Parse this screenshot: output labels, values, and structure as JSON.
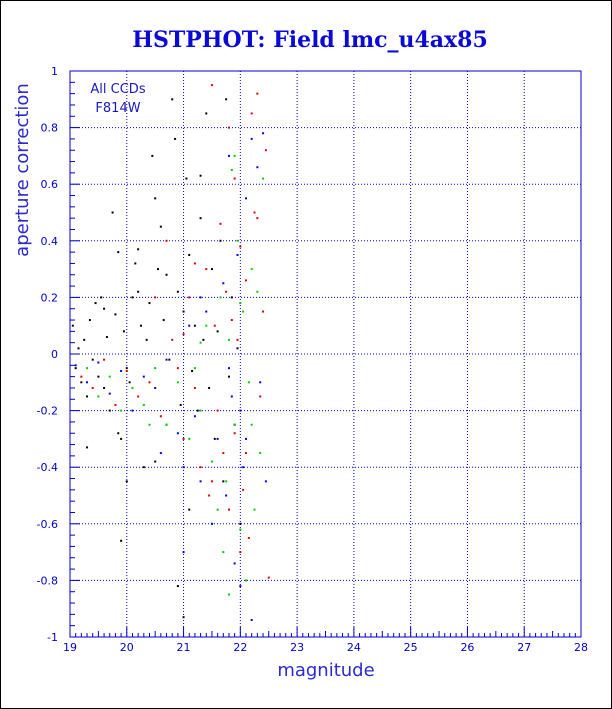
{
  "chart_data": {
    "type": "scatter",
    "title": "HSTPHOT: Field lmc_u4ax85",
    "xlabel": "magnitude",
    "ylabel": "aperture correction",
    "xlim": [
      19,
      28
    ],
    "ylim": [
      -1,
      1
    ],
    "xticks": [
      "19",
      "20",
      "21",
      "22",
      "23",
      "24",
      "25",
      "26",
      "27",
      "28"
    ],
    "yticks": [
      "1",
      "0.8",
      "0.6",
      "0.4",
      "0.2",
      "0",
      "-0.2",
      "-0.4",
      "-0.6",
      "-0.8",
      "-1"
    ],
    "grid": true,
    "annotations": [
      "All CCDs",
      "F814W"
    ],
    "colors": {
      "frame": "#0000cc",
      "grid": "#0000cc",
      "title": "#0a0ad8",
      "series": [
        "#000000",
        "#e00000",
        "#00d000",
        "#0000ee"
      ]
    },
    "series": [
      {
        "color": "#000000",
        "points": [
          [
            19.05,
            0.1
          ],
          [
            19.1,
            -0.05
          ],
          [
            19.15,
            0.02
          ],
          [
            19.2,
            -0.1
          ],
          [
            19.25,
            0.05
          ],
          [
            19.3,
            -0.15
          ],
          [
            19.35,
            0.12
          ],
          [
            19.4,
            -0.02
          ],
          [
            19.45,
            0.18
          ],
          [
            19.5,
            -0.08
          ],
          [
            19.55,
            0.2
          ],
          [
            19.6,
            -0.12
          ],
          [
            19.65,
            0.06
          ],
          [
            19.7,
            -0.2
          ],
          [
            19.75,
            0.5
          ],
          [
            19.8,
            0.14
          ],
          [
            19.85,
            -0.28
          ],
          [
            19.9,
            -0.3
          ],
          [
            19.95,
            0.08
          ],
          [
            20.0,
            -0.05
          ],
          [
            20.05,
            -0.1
          ],
          [
            20.1,
            0.2
          ],
          [
            20.15,
            0.32
          ],
          [
            20.2,
            0.22
          ],
          [
            20.25,
            0.1
          ],
          [
            20.3,
            -0.4
          ],
          [
            20.35,
            0.05
          ],
          [
            20.4,
            0.18
          ],
          [
            20.45,
            0.7
          ],
          [
            20.5,
            0.55
          ],
          [
            20.55,
            0.3
          ],
          [
            20.6,
            0.45
          ],
          [
            20.65,
            0.12
          ],
          [
            20.7,
            0.28
          ],
          [
            20.75,
            -0.02
          ],
          [
            20.8,
            0.9
          ],
          [
            20.85,
            0.76
          ],
          [
            20.9,
            0.22
          ],
          [
            20.95,
            -0.18
          ],
          [
            21.0,
            0.15
          ],
          [
            21.05,
            0.62
          ],
          [
            21.1,
            0.35
          ],
          [
            21.15,
            -0.06
          ],
          [
            21.2,
            0.1
          ],
          [
            21.25,
            -0.2
          ],
          [
            21.3,
            0.48
          ],
          [
            21.35,
            0.05
          ],
          [
            21.4,
            0.85
          ],
          [
            21.45,
            -0.12
          ],
          [
            21.5,
            0.3
          ],
          [
            21.55,
            -0.3
          ],
          [
            21.6,
            0.08
          ],
          [
            21.65,
            0.4
          ],
          [
            21.7,
            -0.45
          ],
          [
            21.75,
            0.9
          ],
          [
            21.8,
            -0.08
          ],
          [
            21.85,
            0.2
          ],
          [
            21.9,
            -0.25
          ],
          [
            21.95,
            0.02
          ],
          [
            22.0,
            -0.6
          ],
          [
            20.9,
            -0.82
          ],
          [
            21.0,
            -0.93
          ],
          [
            19.9,
            -0.66
          ],
          [
            20.2,
            0.37
          ],
          [
            19.3,
            -0.33
          ],
          [
            19.6,
            0.16
          ],
          [
            20.5,
            -0.38
          ],
          [
            20.7,
            -0.25
          ],
          [
            21.1,
            -0.55
          ],
          [
            19.85,
            0.36
          ],
          [
            20.0,
            -0.45
          ],
          [
            21.3,
            0.63
          ]
        ]
      },
      {
        "color": "#e00000",
        "points": [
          [
            19.2,
            -0.08
          ],
          [
            19.4,
            -0.12
          ],
          [
            19.6,
            -0.02
          ],
          [
            19.8,
            -0.18
          ],
          [
            20.0,
            -0.06
          ],
          [
            20.2,
            -0.15
          ],
          [
            20.4,
            -0.1
          ],
          [
            20.6,
            -0.22
          ],
          [
            20.8,
            0.05
          ],
          [
            21.0,
            -0.3
          ],
          [
            21.1,
            0.2
          ],
          [
            21.2,
            -0.12
          ],
          [
            21.3,
            -0.4
          ],
          [
            21.4,
            0.3
          ],
          [
            21.45,
            -0.5
          ],
          [
            21.5,
            0.95
          ],
          [
            21.55,
            0.1
          ],
          [
            21.6,
            -0.2
          ],
          [
            21.65,
            0.46
          ],
          [
            21.7,
            -0.35
          ],
          [
            21.75,
            0.22
          ],
          [
            21.8,
            -0.55
          ],
          [
            21.85,
            0.12
          ],
          [
            21.9,
            -0.28
          ],
          [
            21.95,
            0.05
          ],
          [
            22.0,
            0.38
          ],
          [
            22.05,
            -0.48
          ],
          [
            22.1,
            0.26
          ],
          [
            22.15,
            -0.65
          ],
          [
            22.2,
            0.85
          ],
          [
            22.25,
            0.5
          ],
          [
            22.3,
            0.92
          ],
          [
            22.35,
            -0.15
          ],
          [
            22.4,
            0.15
          ],
          [
            22.45,
            0.72
          ],
          [
            22.5,
            -0.79
          ],
          [
            22.0,
            -0.7
          ],
          [
            21.8,
            0.8
          ],
          [
            21.5,
            -0.45
          ],
          [
            21.2,
            0.32
          ],
          [
            20.9,
            -0.05
          ],
          [
            20.7,
            0.4
          ],
          [
            21.9,
            0.62
          ],
          [
            22.3,
            0.48
          ],
          [
            22.1,
            -0.35
          ],
          [
            20.5,
            0.2
          ],
          [
            21.0,
            0.07
          ]
        ]
      },
      {
        "color": "#00d000",
        "points": [
          [
            19.3,
            -0.05
          ],
          [
            19.5,
            -0.15
          ],
          [
            19.7,
            -0.08
          ],
          [
            19.9,
            -0.2
          ],
          [
            20.1,
            -0.12
          ],
          [
            20.3,
            -0.18
          ],
          [
            20.5,
            -0.05
          ],
          [
            20.7,
            -0.25
          ],
          [
            20.9,
            -0.1
          ],
          [
            21.1,
            -0.3
          ],
          [
            21.3,
            -0.2
          ],
          [
            21.4,
            0.1
          ],
          [
            21.5,
            -0.38
          ],
          [
            21.6,
            -0.55
          ],
          [
            21.65,
            0.2
          ],
          [
            21.7,
            -0.7
          ],
          [
            21.75,
            -0.45
          ],
          [
            21.8,
            0.05
          ],
          [
            21.85,
            0.65
          ],
          [
            21.9,
            -0.25
          ],
          [
            21.95,
            0.4
          ],
          [
            22.0,
            -0.62
          ],
          [
            22.05,
            0.15
          ],
          [
            22.1,
            -0.8
          ],
          [
            22.15,
            -0.1
          ],
          [
            22.2,
            0.3
          ],
          [
            22.25,
            -0.55
          ],
          [
            22.3,
            0.22
          ],
          [
            22.35,
            -0.35
          ],
          [
            22.4,
            0.62
          ],
          [
            21.9,
            0.7
          ],
          [
            21.5,
            -0.6
          ],
          [
            20.4,
            -0.25
          ],
          [
            21.2,
            -0.05
          ],
          [
            22.2,
            -0.25
          ],
          [
            21.8,
            -0.85
          ],
          [
            22.0,
            0.18
          ],
          [
            21.3,
            0.04
          ]
        ]
      },
      {
        "color": "#0000ee",
        "points": [
          [
            19.1,
            -0.04
          ],
          [
            19.3,
            -0.1
          ],
          [
            19.5,
            -0.03
          ],
          [
            19.7,
            -0.14
          ],
          [
            19.9,
            -0.06
          ],
          [
            20.1,
            -0.2
          ],
          [
            20.3,
            -0.08
          ],
          [
            20.5,
            -0.12
          ],
          [
            20.7,
            -0.02
          ],
          [
            20.9,
            -0.28
          ],
          [
            21.0,
            -0.4
          ],
          [
            21.1,
            0.1
          ],
          [
            21.2,
            -0.22
          ],
          [
            21.3,
            -0.45
          ],
          [
            21.4,
            0.15
          ],
          [
            21.5,
            -0.6
          ],
          [
            21.6,
            -0.3
          ],
          [
            21.7,
            0.25
          ],
          [
            21.75,
            -0.5
          ],
          [
            21.8,
            0.7
          ],
          [
            21.85,
            -0.15
          ],
          [
            21.9,
            -0.74
          ],
          [
            21.95,
            0.35
          ],
          [
            22.0,
            -0.2
          ],
          [
            22.05,
            -0.4
          ],
          [
            22.1,
            0.55
          ],
          [
            22.2,
            0.76
          ],
          [
            22.3,
            0.66
          ],
          [
            22.35,
            -0.1
          ],
          [
            22.4,
            0.78
          ],
          [
            22.45,
            -0.45
          ],
          [
            22.2,
            -0.94
          ],
          [
            22.0,
            -0.82
          ],
          [
            21.3,
            0.2
          ],
          [
            20.6,
            -0.35
          ],
          [
            21.8,
            -0.05
          ],
          [
            21.0,
            -0.7
          ],
          [
            22.1,
            -0.3
          ]
        ]
      }
    ]
  }
}
